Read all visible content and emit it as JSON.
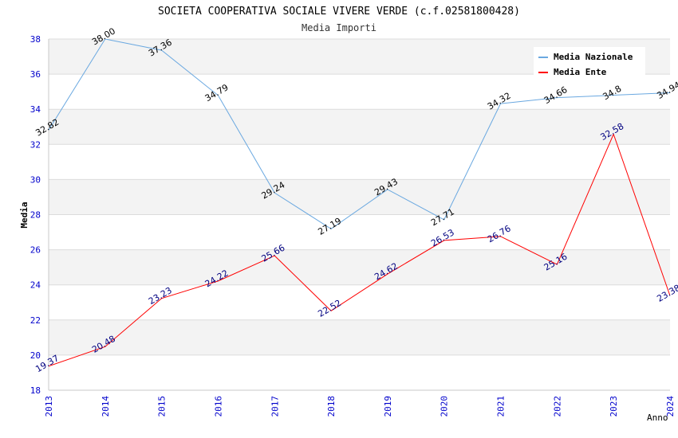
{
  "chart_data": {
    "type": "line",
    "title": "SOCIETA COOPERATIVA SOCIALE VIVERE VERDE (c.f.02581800428)",
    "subtitle": "Media Importi",
    "xlabel": "Anno",
    "ylabel": "Media",
    "ylim": [
      18,
      38
    ],
    "yticks": [
      "18",
      "20",
      "22",
      "24",
      "26",
      "28",
      "30",
      "32",
      "34",
      "36",
      "38"
    ],
    "categories": [
      "2013",
      "2014",
      "2015",
      "2016",
      "2017",
      "2018",
      "2019",
      "2020",
      "2021",
      "2022",
      "2023",
      "2024"
    ],
    "legend_position": "top-right",
    "series": [
      {
        "name": "Media Nazionale",
        "color": "#6aa8e0",
        "label_color": "#000000",
        "values": [
          32.82,
          38.0,
          37.36,
          34.79,
          29.24,
          27.19,
          29.43,
          27.71,
          34.32,
          34.66,
          34.8,
          34.94
        ],
        "labels": [
          "32.82",
          "38.00",
          "37.36",
          "34.79",
          "29.24",
          "27.19",
          "29.43",
          "27.71",
          "34.32",
          "34.66",
          "34.8",
          "34.94"
        ]
      },
      {
        "name": "Media Ente",
        "color": "#ff0000",
        "label_color": "#000080",
        "values": [
          19.37,
          20.48,
          23.23,
          24.22,
          25.66,
          22.52,
          24.62,
          26.53,
          26.76,
          25.16,
          32.58,
          23.38
        ],
        "labels": [
          "19.37",
          "20.48",
          "23.23",
          "24.22",
          "25.66",
          "22.52",
          "24.62",
          "26.53",
          "26.76",
          "25.16",
          "32.58",
          "23.38"
        ]
      }
    ]
  }
}
